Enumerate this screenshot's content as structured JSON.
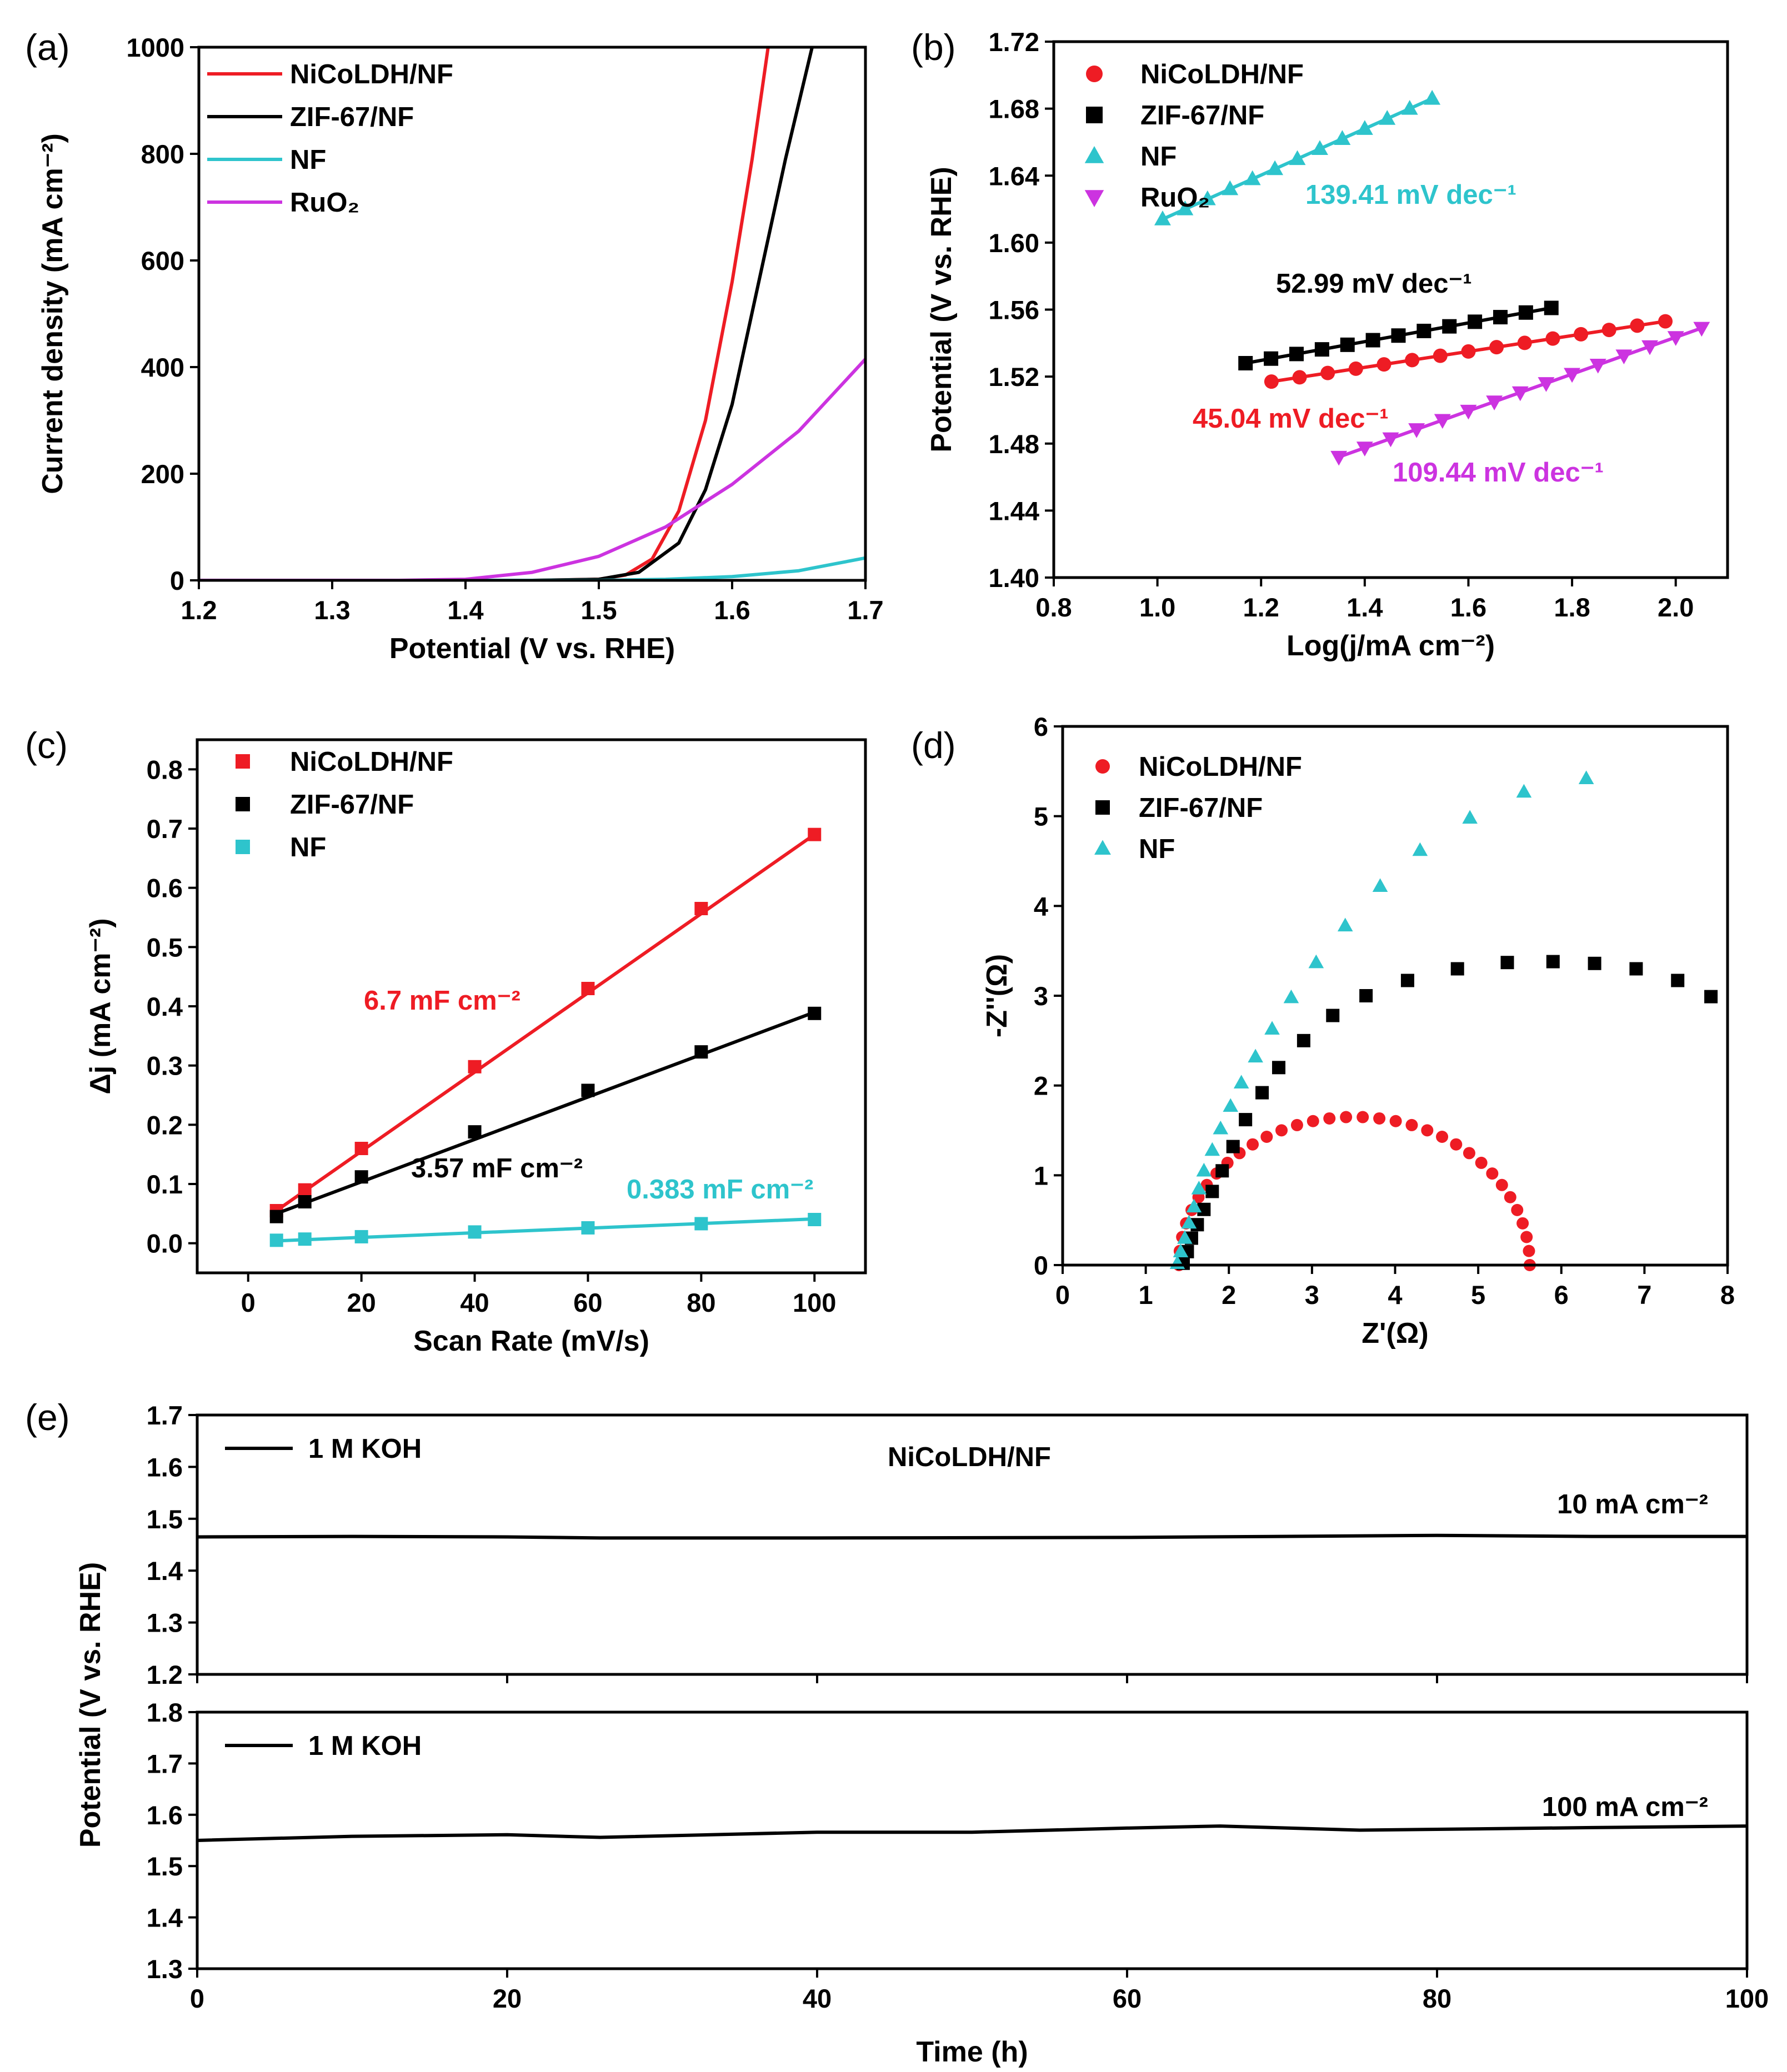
{
  "chart_data": [
    {
      "id": "a",
      "panel_label": "(a)",
      "type": "line",
      "xlabel": "Potential (V vs. RHE)",
      "ylabel": "Current density (mA cm⁻²)",
      "xlim": [
        1.2,
        1.7
      ],
      "ylim": [
        0,
        1000
      ],
      "xticks": [
        "1.2",
        "1.3",
        "1.4",
        "1.5",
        "1.6",
        "1.7"
      ],
      "yticks": [
        "0",
        "200",
        "400",
        "600",
        "800",
        "1000"
      ],
      "legend_position": "top-left",
      "series": [
        {
          "name": "NiCoLDH/NF",
          "color": "#ee1c24",
          "points": [
            [
              1.2,
              0
            ],
            [
              1.45,
              0
            ],
            [
              1.5,
              2
            ],
            [
              1.52,
              10
            ],
            [
              1.54,
              40
            ],
            [
              1.56,
              130
            ],
            [
              1.58,
              300
            ],
            [
              1.6,
              560
            ],
            [
              1.615,
              790
            ],
            [
              1.627,
              1000
            ]
          ]
        },
        {
          "name": "ZIF-67/NF",
          "color": "#000000",
          "points": [
            [
              1.2,
              0
            ],
            [
              1.45,
              0
            ],
            [
              1.5,
              2
            ],
            [
              1.53,
              15
            ],
            [
              1.56,
              70
            ],
            [
              1.58,
              170
            ],
            [
              1.6,
              330
            ],
            [
              1.62,
              560
            ],
            [
              1.64,
              790
            ],
            [
              1.66,
              1000
            ]
          ]
        },
        {
          "name": "NF",
          "color": "#2ec4cc",
          "points": [
            [
              1.2,
              0
            ],
            [
              1.5,
              0
            ],
            [
              1.55,
              2
            ],
            [
              1.6,
              7
            ],
            [
              1.65,
              18
            ],
            [
              1.7,
              42
            ]
          ]
        },
        {
          "name": "RuO₂",
          "color": "#cc33e0",
          "points": [
            [
              1.2,
              0
            ],
            [
              1.35,
              0
            ],
            [
              1.4,
              2
            ],
            [
              1.45,
              15
            ],
            [
              1.5,
              45
            ],
            [
              1.55,
              100
            ],
            [
              1.6,
              180
            ],
            [
              1.65,
              280
            ],
            [
              1.7,
              415
            ]
          ]
        }
      ]
    },
    {
      "id": "b",
      "panel_label": "(b)",
      "type": "scatter",
      "xlabel": "Log(j/mA cm⁻²)",
      "ylabel": "Potential (V vs. RHE)",
      "xlim": [
        0.8,
        2.1
      ],
      "ylim": [
        1.4,
        1.72
      ],
      "xticks": [
        "0.8",
        "1.0",
        "1.2",
        "1.4",
        "1.6",
        "1.8",
        "2.0"
      ],
      "yticks": [
        "1.40",
        "1.44",
        "1.48",
        "1.52",
        "1.56",
        "1.60",
        "1.64",
        "1.68",
        "1.72"
      ],
      "legend_position": "top-left",
      "series": [
        {
          "name": "NiCoLDH/NF",
          "color": "#ee1c24",
          "marker": "circle",
          "x_start": 1.22,
          "x_end": 1.98,
          "count": 15,
          "y_start": 1.517,
          "y_end": 1.553,
          "tafel_label": "45.04 mV dec⁻¹"
        },
        {
          "name": "ZIF-67/NF",
          "color": "#000000",
          "marker": "square",
          "x_start": 1.17,
          "x_end": 1.76,
          "count": 13,
          "y_start": 1.528,
          "y_end": 1.561,
          "tafel_label": "52.99 mV dec⁻¹"
        },
        {
          "name": "NF",
          "color": "#2ec4cc",
          "marker": "triangle-up",
          "x_start": 1.01,
          "x_end": 1.53,
          "count": 13,
          "y_start": 1.614,
          "y_end": 1.686,
          "tafel_label": "139.41 mV dec⁻¹"
        },
        {
          "name": "RuO₂",
          "color": "#cc33e0",
          "marker": "triangle-down",
          "x_start": 1.35,
          "x_end": 2.05,
          "count": 15,
          "y_start": 1.472,
          "y_end": 1.549,
          "tafel_label": "109.44 mV dec⁻¹"
        }
      ]
    },
    {
      "id": "c",
      "panel_label": "(c)",
      "type": "scatter",
      "xlabel": "Scan Rate (mV/s)",
      "ylabel": "Δj (mA cm⁻²)",
      "xlim": [
        -9,
        109
      ],
      "ylim": [
        -0.05,
        0.85
      ],
      "xticks": [
        "0",
        "20",
        "40",
        "60",
        "80",
        "100"
      ],
      "yticks": [
        "0.0",
        "0.1",
        "0.2",
        "0.3",
        "0.4",
        "0.5",
        "0.6",
        "0.7",
        "0.8"
      ],
      "legend_position": "top-left",
      "x": [
        5,
        10,
        20,
        40,
        60,
        80,
        100
      ],
      "series": [
        {
          "name": "NiCoLDH/NF",
          "color": "#ee1c24",
          "values": [
            0.055,
            0.09,
            0.16,
            0.298,
            0.43,
            0.565,
            0.69
          ],
          "fit": [
            0.055,
            0.69
          ],
          "capacitance": "6.7 mF cm⁻²"
        },
        {
          "name": "ZIF-67/NF",
          "color": "#000000",
          "values": [
            0.045,
            0.07,
            0.112,
            0.188,
            0.258,
            0.323,
            0.388
          ],
          "fit": [
            0.05,
            0.39
          ],
          "capacitance": "3.57 mF cm⁻²"
        },
        {
          "name": "NF",
          "color": "#2ec4cc",
          "values": [
            0.005,
            0.007,
            0.011,
            0.019,
            0.026,
            0.033,
            0.04
          ],
          "fit": [
            0.004,
            0.041
          ],
          "capacitance": "0.383 mF cm⁻²"
        }
      ]
    },
    {
      "id": "d",
      "panel_label": "(d)",
      "type": "scatter",
      "xlabel": "Z'(Ω)",
      "ylabel": "-Z''(Ω)",
      "xlim": [
        0,
        8
      ],
      "ylim": [
        0,
        6
      ],
      "xticks": [
        "0",
        "1",
        "2",
        "3",
        "4",
        "5",
        "6",
        "7",
        "8"
      ],
      "yticks": [
        "0",
        "1",
        "2",
        "3",
        "4",
        "5",
        "6"
      ],
      "legend_position": "top-left",
      "series": [
        {
          "name": "NiCoLDH/NF",
          "color": "#ee1c24",
          "marker": "circle",
          "arc": {
            "x_start": 1.4,
            "x_end": 5.62,
            "peak": 1.65,
            "count": 34
          }
        },
        {
          "name": "ZIF-67/NF",
          "color": "#000000",
          "marker": "square",
          "points": [
            [
              1.45,
              0.02
            ],
            [
              1.5,
              0.15
            ],
            [
              1.55,
              0.3
            ],
            [
              1.62,
              0.45
            ],
            [
              1.7,
              0.62
            ],
            [
              1.8,
              0.82
            ],
            [
              1.92,
              1.05
            ],
            [
              2.05,
              1.32
            ],
            [
              2.2,
              1.62
            ],
            [
              2.4,
              1.92
            ],
            [
              2.6,
              2.2
            ],
            [
              2.9,
              2.5
            ],
            [
              3.25,
              2.78
            ],
            [
              3.65,
              3.0
            ],
            [
              4.15,
              3.17
            ],
            [
              4.75,
              3.3
            ],
            [
              5.35,
              3.37
            ],
            [
              5.9,
              3.38
            ],
            [
              6.4,
              3.36
            ],
            [
              6.9,
              3.3
            ],
            [
              7.4,
              3.17
            ],
            [
              7.8,
              2.99
            ]
          ]
        },
        {
          "name": "NF",
          "color": "#2ec4cc",
          "marker": "triangle-up",
          "points": [
            [
              1.38,
              0.02
            ],
            [
              1.42,
              0.15
            ],
            [
              1.47,
              0.3
            ],
            [
              1.52,
              0.47
            ],
            [
              1.58,
              0.65
            ],
            [
              1.64,
              0.85
            ],
            [
              1.7,
              1.05
            ],
            [
              1.8,
              1.28
            ],
            [
              1.9,
              1.52
            ],
            [
              2.02,
              1.77
            ],
            [
              2.15,
              2.03
            ],
            [
              2.32,
              2.32
            ],
            [
              2.52,
              2.63
            ],
            [
              2.75,
              2.98
            ],
            [
              3.05,
              3.37
            ],
            [
              3.4,
              3.78
            ],
            [
              3.82,
              4.22
            ],
            [
              4.3,
              4.62
            ],
            [
              4.9,
              4.98
            ],
            [
              5.55,
              5.27
            ],
            [
              6.3,
              5.42
            ]
          ]
        }
      ]
    },
    {
      "id": "e",
      "panel_label": "(e)",
      "type": "line",
      "title": "NiCoLDH/NF",
      "xlabel": "Time (h)",
      "ylabel": "Potential (V vs. RHE)",
      "xlim": [
        0,
        100
      ],
      "xticks": [
        "0",
        "20",
        "40",
        "60",
        "80",
        "100"
      ],
      "subplots": [
        {
          "name": "1 M KOH",
          "current_label": "10 mA cm⁻²",
          "ylim": [
            1.2,
            1.7
          ],
          "yticks": [
            "1.2",
            "1.3",
            "1.4",
            "1.5",
            "1.6",
            "1.7"
          ],
          "color": "#000000",
          "points": [
            [
              0,
              1.465
            ],
            [
              10,
              1.466
            ],
            [
              20,
              1.465
            ],
            [
              26,
              1.463
            ],
            [
              40,
              1.463
            ],
            [
              60,
              1.464
            ],
            [
              80,
              1.468
            ],
            [
              90,
              1.466
            ],
            [
              100,
              1.466
            ]
          ]
        },
        {
          "name": "1 M KOH",
          "current_label": "100 mA cm⁻²",
          "ylim": [
            1.3,
            1.8
          ],
          "yticks": [
            "1.3",
            "1.4",
            "1.5",
            "1.6",
            "1.7",
            "1.8"
          ],
          "color": "#000000",
          "points": [
            [
              0,
              1.55
            ],
            [
              10,
              1.558
            ],
            [
              20,
              1.561
            ],
            [
              26,
              1.556
            ],
            [
              40,
              1.566
            ],
            [
              50,
              1.566
            ],
            [
              60,
              1.574
            ],
            [
              66,
              1.578
            ],
            [
              75,
              1.57
            ],
            [
              90,
              1.575
            ],
            [
              100,
              1.578
            ]
          ]
        }
      ]
    }
  ]
}
